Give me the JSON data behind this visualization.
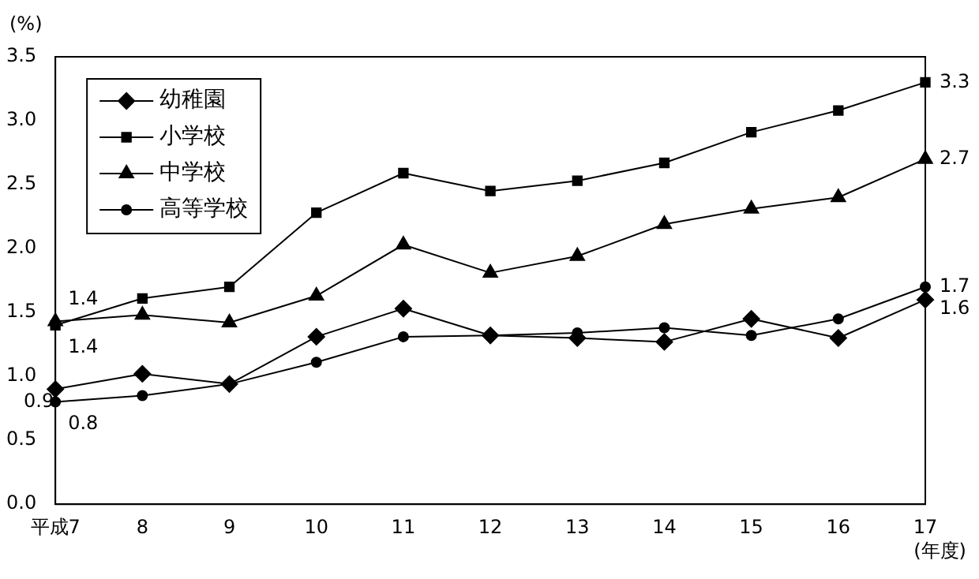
{
  "chart_data": {
    "type": "line",
    "xlabel": "(年度)",
    "ylabel": "(%)",
    "categories": [
      "平成7",
      "8",
      "9",
      "10",
      "11",
      "12",
      "13",
      "14",
      "15",
      "16",
      "17"
    ],
    "ylim": [
      0,
      3.5
    ],
    "yticks": [
      {
        "value": 0,
        "label": "0.0"
      },
      {
        "value": 0.5,
        "label": "0.5"
      },
      {
        "value": 1,
        "label": "1.0"
      },
      {
        "value": 1.5,
        "label": "1.5"
      },
      {
        "value": 2,
        "label": "2.0"
      },
      {
        "value": 2.5,
        "label": "2.5"
      },
      {
        "value": 3,
        "label": "3.0"
      },
      {
        "value": 3.5,
        "label": "3.5"
      }
    ],
    "grid": false,
    "legend": "top left",
    "line_style": "solid",
    "series": [
      {
        "name": "幼稚園",
        "color": "#000000",
        "marker": "diamond",
        "values": [
          0.9,
          1.02,
          0.94,
          1.31,
          1.53,
          1.32,
          1.3,
          1.27,
          1.45,
          1.3,
          1.6
        ],
        "value_labels": [
          "0.9",
          null,
          null,
          null,
          null,
          null,
          null,
          null,
          null,
          null,
          "1.6"
        ]
      },
      {
        "name": "小学校",
        "color": "#000000",
        "marker": "square",
        "values": [
          1.4,
          1.61,
          1.7,
          2.28,
          2.59,
          2.45,
          2.53,
          2.67,
          2.91,
          3.08,
          3.3
        ],
        "value_labels": [
          "1.4",
          null,
          null,
          null,
          null,
          null,
          null,
          null,
          null,
          null,
          "3.3"
        ]
      },
      {
        "name": "中学校",
        "color": "#000000",
        "marker": "triangle",
        "values": [
          1.43,
          1.48,
          1.42,
          1.63,
          2.03,
          1.81,
          1.94,
          2.19,
          2.31,
          2.4,
          2.7
        ],
        "value_labels": [
          "1.4",
          null,
          null,
          null,
          null,
          null,
          null,
          null,
          null,
          null,
          "2.7"
        ]
      },
      {
        "name": "高等学校",
        "color": "#000000",
        "marker": "circle",
        "values": [
          0.8,
          0.85,
          0.94,
          1.11,
          1.31,
          1.32,
          1.34,
          1.38,
          1.32,
          1.45,
          1.7
        ],
        "value_labels": [
          "0.8",
          null,
          null,
          null,
          null,
          null,
          null,
          null,
          null,
          null,
          "1.7"
        ]
      }
    ]
  }
}
